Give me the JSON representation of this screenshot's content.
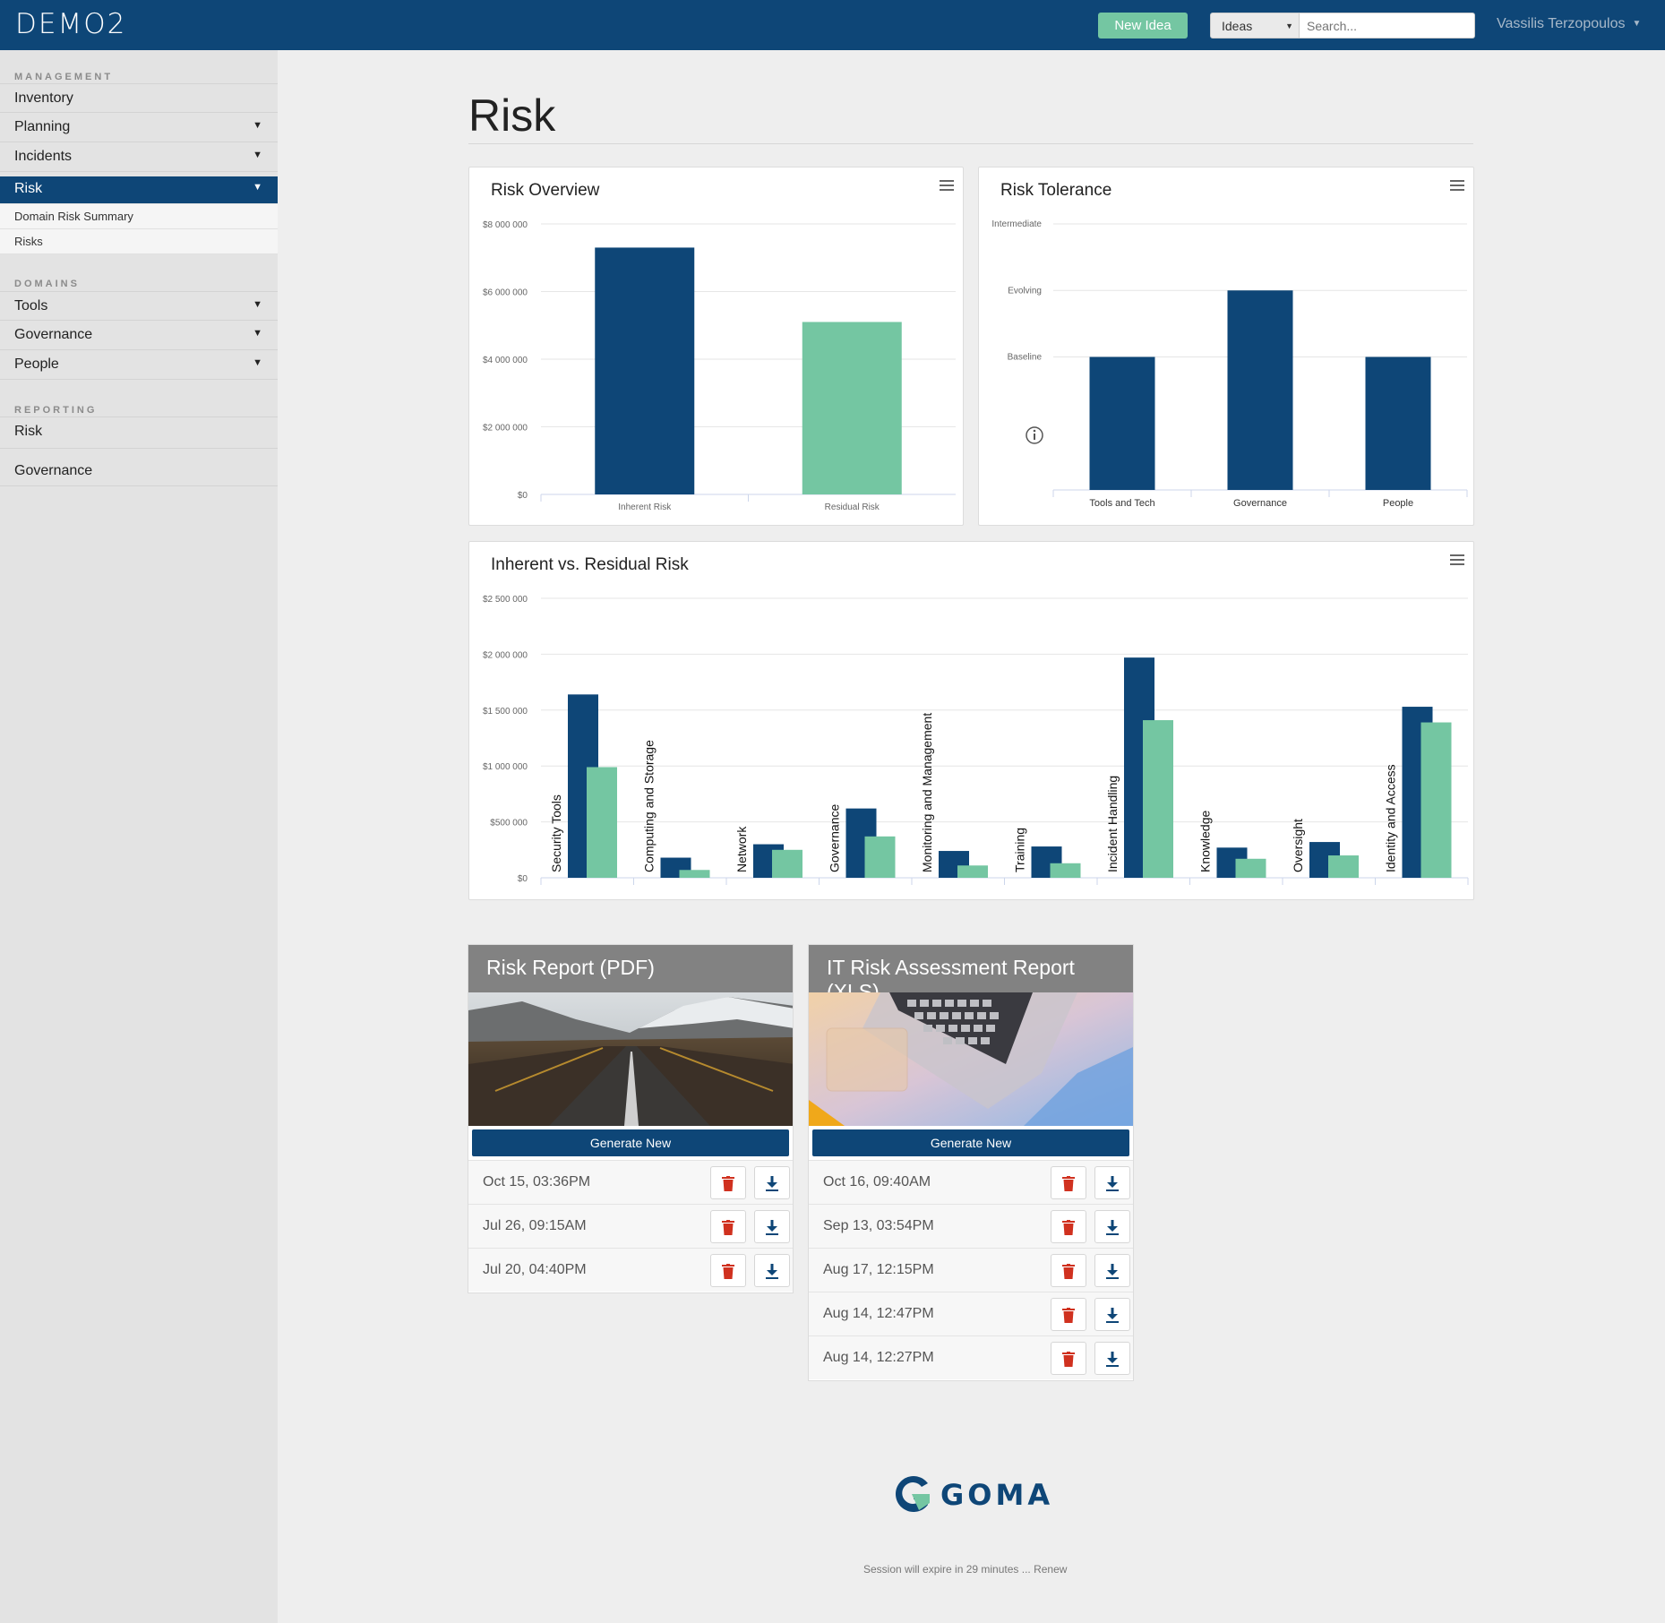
{
  "app": {
    "brand": "DEMO2"
  },
  "topbar": {
    "new_idea": "New Idea",
    "search_scope": "Ideas",
    "search_placeholder": "Search...",
    "user_name": "Vassilis Terzopoulos"
  },
  "sidebar": {
    "management_heading": "MANAGEMENT",
    "inventory": "Inventory",
    "planning": "Planning",
    "incidents": "Incidents",
    "risk": "Risk",
    "risk_sub": [
      "Domain Risk Summary",
      "Risks"
    ],
    "domains_heading": "DOMAINS",
    "tools": "Tools",
    "governance": "Governance",
    "people": "People",
    "reporting_heading": "REPORTING",
    "report_risk": "Risk",
    "report_governance": "Governance"
  },
  "page": {
    "title": "Risk"
  },
  "charts": {
    "overview_title": "Risk Overview",
    "tolerance_title": "Risk Tolerance",
    "ivr_title": "Inherent vs. Residual Risk"
  },
  "colors": {
    "primary": "#0e4677",
    "secondary": "#74c6a2",
    "delete": "#d0311f"
  },
  "chart_data": [
    {
      "type": "bar",
      "title": "Risk Overview",
      "categories": [
        "Inherent Risk",
        "Residual Risk"
      ],
      "values": [
        7300000,
        5100000
      ],
      "colors": [
        "#0e4677",
        "#74c6a2"
      ],
      "ylim": [
        0,
        8000000
      ],
      "yticks": [
        "$0",
        "$2 000 000",
        "$4 000 000",
        "$6 000 000",
        "$8 000 000"
      ],
      "grid": true
    },
    {
      "type": "bar",
      "title": "Risk Tolerance",
      "categories": [
        "Tools and Tech",
        "Governance",
        "People"
      ],
      "values": [
        2,
        3,
        2
      ],
      "ylim": [
        0,
        4
      ],
      "yticks": [
        "Baseline",
        "Evolving",
        "Intermediate"
      ],
      "grid": true
    },
    {
      "type": "bar",
      "title": "Inherent vs. Residual Risk",
      "categories": [
        "Security Tools",
        "Computing and Storage",
        "Network",
        "Governance",
        "Monitoring and Management",
        "Training",
        "Incident Handling",
        "Knowledge",
        "Oversight",
        "Identity and Access"
      ],
      "series": [
        {
          "values": [
            1640000,
            180000,
            300000,
            620000,
            240000,
            280000,
            1970000,
            270000,
            320000,
            1530000
          ]
        },
        {
          "values": [
            990000,
            70000,
            250000,
            370000,
            110000,
            130000,
            1410000,
            170000,
            200000,
            1390000
          ]
        }
      ],
      "ylim": [
        0,
        2500000
      ],
      "yticks": [
        "$0",
        "$500 000",
        "$1 000 000",
        "$1 500 000",
        "$2 000 000",
        "$2 500 000"
      ],
      "grid": true
    }
  ],
  "reports": {
    "pdf": {
      "title": "Risk Report (PDF)",
      "generate": "Generate New",
      "rows": [
        "Oct 15, 03:36PM",
        "Jul 26, 09:15AM",
        "Jul 20, 04:40PM"
      ]
    },
    "xls": {
      "title": "IT Risk Assessment Report (XLS)",
      "generate": "Generate New",
      "rows": [
        "Oct 16, 09:40AM",
        "Sep 13, 03:54PM",
        "Aug 17, 12:15PM",
        "Aug 14, 12:47PM",
        "Aug 14, 12:27PM"
      ]
    }
  },
  "footer": {
    "logo_text": "GOMA",
    "session_text": "Session will expire in 29 minutes ... Renew"
  }
}
